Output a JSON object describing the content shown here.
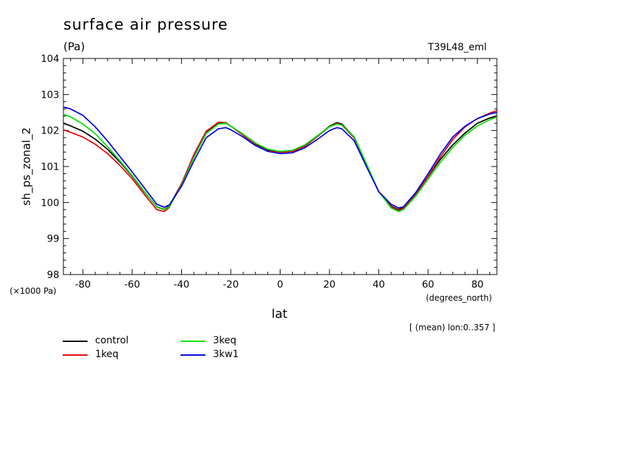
{
  "chart_data": {
    "type": "line",
    "title": "surface air pressure",
    "units": "(Pa)",
    "experiment": "T39L48_eml",
    "xlabel": "lat",
    "ylabel": "sh_ps_zonal_2",
    "x_units": "(degrees_north)",
    "y_units": "(×1000 Pa)",
    "note": "[ (mean) lon:0..357 ]",
    "xlim": [
      -87.9,
      87.9
    ],
    "ylim": [
      98,
      104
    ],
    "xticks": [
      -80,
      -60,
      -40,
      -20,
      0,
      20,
      40,
      60,
      80
    ],
    "yticks": [
      98,
      99,
      100,
      101,
      102,
      103,
      104
    ],
    "x": [
      -87.9,
      -85,
      -80,
      -75,
      -70,
      -65,
      -60,
      -55,
      -50,
      -47,
      -45,
      -40,
      -35,
      -30,
      -25,
      -22,
      -20,
      -15,
      -10,
      -5,
      0,
      5,
      10,
      15,
      20,
      23,
      25,
      30,
      35,
      40,
      45,
      48,
      50,
      55,
      60,
      65,
      70,
      75,
      80,
      85,
      87.9
    ],
    "series": [
      {
        "name": "control",
        "color": "#000000",
        "values": [
          102.2,
          102.13,
          101.98,
          101.76,
          101.48,
          101.13,
          100.73,
          100.29,
          99.88,
          99.81,
          99.9,
          100.52,
          101.3,
          101.95,
          102.2,
          102.2,
          102.12,
          101.89,
          101.62,
          101.45,
          101.4,
          101.42,
          101.57,
          101.83,
          102.12,
          102.22,
          102.18,
          101.82,
          101.05,
          100.3,
          99.9,
          99.8,
          99.87,
          100.24,
          100.72,
          101.2,
          101.6,
          101.93,
          102.2,
          102.35,
          102.4
        ]
      },
      {
        "name": "1keq",
        "color": "#e00000",
        "values": [
          102.02,
          101.95,
          101.82,
          101.62,
          101.36,
          101.03,
          100.66,
          100.22,
          99.8,
          99.75,
          99.86,
          100.52,
          101.33,
          101.98,
          102.23,
          102.22,
          102.12,
          101.87,
          101.6,
          101.43,
          101.4,
          101.42,
          101.56,
          101.83,
          102.1,
          102.2,
          102.15,
          101.8,
          101.05,
          100.3,
          99.88,
          99.78,
          99.84,
          100.22,
          100.73,
          101.27,
          101.75,
          102.1,
          102.33,
          102.48,
          102.55
        ]
      },
      {
        "name": "3keq",
        "color": "#00e000",
        "values": [
          102.45,
          102.38,
          102.18,
          101.91,
          101.55,
          101.16,
          100.75,
          100.3,
          99.87,
          99.8,
          99.88,
          100.48,
          101.25,
          101.92,
          102.18,
          102.2,
          102.12,
          101.9,
          101.65,
          101.48,
          101.42,
          101.45,
          101.6,
          101.85,
          102.1,
          102.18,
          102.15,
          101.83,
          101.08,
          100.3,
          99.85,
          99.75,
          99.8,
          100.18,
          100.65,
          101.12,
          101.53,
          101.87,
          102.13,
          102.3,
          102.38
        ]
      },
      {
        "name": "3kw1",
        "color": "#0000e0",
        "values": [
          102.65,
          102.6,
          102.42,
          102.1,
          101.71,
          101.28,
          100.85,
          100.4,
          99.95,
          99.87,
          99.93,
          100.45,
          101.15,
          101.8,
          102.05,
          102.08,
          102.02,
          101.82,
          101.58,
          101.42,
          101.36,
          101.38,
          101.52,
          101.75,
          102.0,
          102.08,
          102.05,
          101.72,
          101.0,
          100.3,
          99.95,
          99.85,
          99.88,
          100.28,
          100.8,
          101.35,
          101.82,
          102.12,
          102.33,
          102.46,
          102.5
        ]
      }
    ]
  },
  "legend": {
    "items": [
      {
        "label": "control",
        "color": "#000000"
      },
      {
        "label": "1keq",
        "color": "#e00000"
      },
      {
        "label": "3keq",
        "color": "#00e000"
      },
      {
        "label": "3kw1",
        "color": "#0000e0"
      }
    ]
  }
}
